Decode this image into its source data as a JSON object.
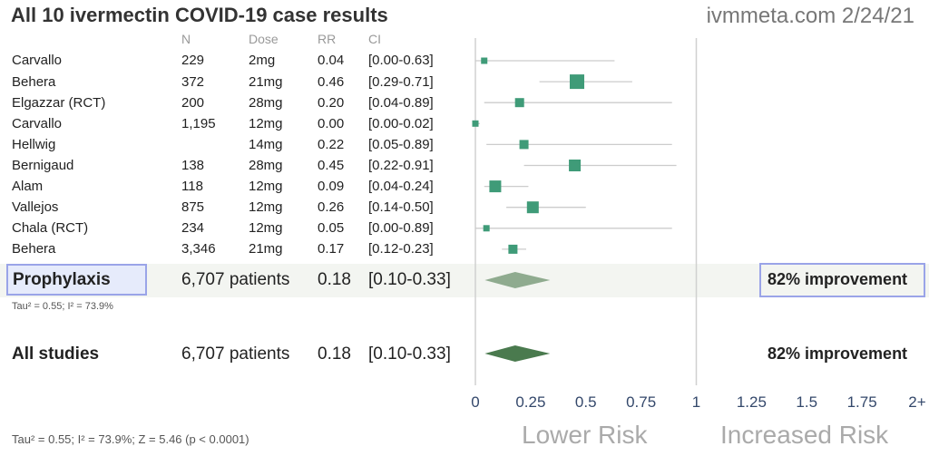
{
  "header": {
    "title": "All 10 ivermectin COVID-19 case results",
    "source": "ivmmeta.com 2/24/21"
  },
  "columns": {
    "n": "N",
    "dose": "Dose",
    "rr": "RR",
    "ci": "CI"
  },
  "rows": [
    {
      "study": "Carvallo",
      "n": "229",
      "dose": "2mg",
      "rr": "0.04",
      "ci": "[0.00-0.63]"
    },
    {
      "study": "Behera",
      "n": "372",
      "dose": "21mg",
      "rr": "0.46",
      "ci": "[0.29-0.71]"
    },
    {
      "study": "Elgazzar (RCT)",
      "n": "200",
      "dose": "28mg",
      "rr": "0.20",
      "ci": "[0.04-0.89]"
    },
    {
      "study": "Carvallo",
      "n": "1,195",
      "dose": "12mg",
      "rr": "0.00",
      "ci": "[0.00-0.02]"
    },
    {
      "study": "Hellwig",
      "n": "",
      "dose": "14mg",
      "rr": "0.22",
      "ci": "[0.05-0.89]"
    },
    {
      "study": "Bernigaud",
      "n": "138",
      "dose": "28mg",
      "rr": "0.45",
      "ci": "[0.22-0.91]"
    },
    {
      "study": "Alam",
      "n": "118",
      "dose": "12mg",
      "rr": "0.09",
      "ci": "[0.04-0.24]"
    },
    {
      "study": "Vallejos",
      "n": "875",
      "dose": "12mg",
      "rr": "0.26",
      "ci": "[0.14-0.50]"
    },
    {
      "study": "Chala (RCT)",
      "n": "234",
      "dose": "12mg",
      "rr": "0.05",
      "ci": "[0.00-0.89]"
    },
    {
      "study": "Behera",
      "n": "3,346",
      "dose": "21mg",
      "rr": "0.17",
      "ci": "[0.12-0.23]"
    }
  ],
  "prophylaxis": {
    "label": "Prophylaxis",
    "patients": "6,707 patients",
    "rr": "0.18",
    "ci": "[0.10-0.33]",
    "improvement": "82% improvement",
    "heterogeneity": "Tau² = 0.55; I² = 73.9%"
  },
  "all_studies": {
    "label": "All studies",
    "patients": "6,707 patients",
    "rr": "0.18",
    "ci": "[0.10-0.33]",
    "improvement": "82% improvement"
  },
  "footer": {
    "stats": "Tau² = 0.55; I² = 73.9%; Z = 5.46 (p < 0.0001)",
    "lower_risk": "Lower Risk",
    "increased_risk": "Increased Risk"
  },
  "colors": {
    "marker": "#3f9b78",
    "ci_line": "#cccccc",
    "prophylaxis_diamond": "#8fab8f",
    "all_diamond": "#4a7a4e",
    "highlight_border": "#9aa4e8",
    "axis_text": "#34486b"
  },
  "chart_data": {
    "type": "forest",
    "x_scale": "linear",
    "xlim": [
      0,
      2
    ],
    "xticks": [
      "0",
      "0.25",
      "0.5",
      "0.75",
      "1",
      "1.25",
      "1.5",
      "1.75",
      "2+"
    ],
    "reference_line": 1,
    "studies": [
      {
        "name": "Carvallo",
        "rr": 0.04,
        "lo": 0.0,
        "hi": 0.63,
        "weight": 1
      },
      {
        "name": "Behera",
        "rr": 0.46,
        "lo": 0.29,
        "hi": 0.71,
        "weight": 4
      },
      {
        "name": "Elgazzar (RCT)",
        "rr": 0.2,
        "lo": 0.04,
        "hi": 0.89,
        "weight": 2
      },
      {
        "name": "Carvallo",
        "rr": 0.0,
        "lo": 0.0,
        "hi": 0.02,
        "weight": 1
      },
      {
        "name": "Hellwig",
        "rr": 0.22,
        "lo": 0.05,
        "hi": 0.89,
        "weight": 2
      },
      {
        "name": "Bernigaud",
        "rr": 0.45,
        "lo": 0.22,
        "hi": 0.91,
        "weight": 3
      },
      {
        "name": "Alam",
        "rr": 0.09,
        "lo": 0.04,
        "hi": 0.24,
        "weight": 3
      },
      {
        "name": "Vallejos",
        "rr": 0.26,
        "lo": 0.14,
        "hi": 0.5,
        "weight": 3
      },
      {
        "name": "Chala (RCT)",
        "rr": 0.05,
        "lo": 0.0,
        "hi": 0.89,
        "weight": 1
      },
      {
        "name": "Behera",
        "rr": 0.17,
        "lo": 0.12,
        "hi": 0.23,
        "weight": 2
      }
    ],
    "pooled": [
      {
        "name": "Prophylaxis",
        "rr": 0.18,
        "lo": 0.1,
        "hi": 0.33
      },
      {
        "name": "All studies",
        "rr": 0.18,
        "lo": 0.1,
        "hi": 0.33
      }
    ]
  }
}
